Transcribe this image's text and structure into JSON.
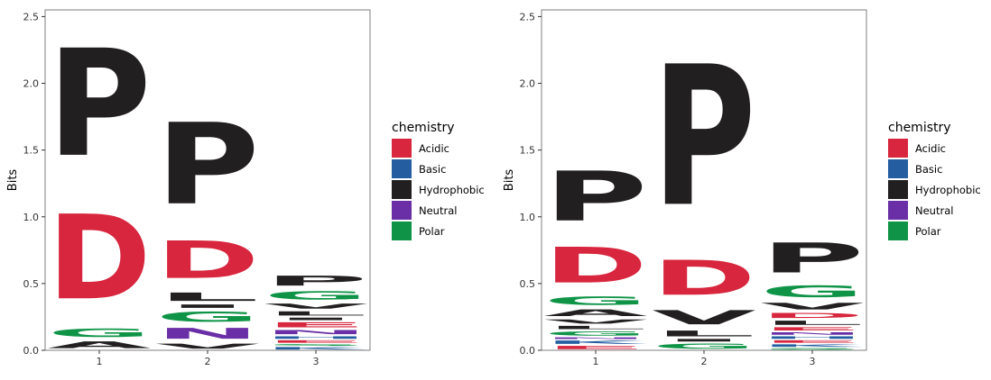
{
  "chart_data": [
    {
      "type": "sequence-logo",
      "ylabel": "Bits",
      "ylim": [
        0,
        2.55
      ],
      "y_ticks": [
        "0.0",
        "0.5",
        "1.0",
        "1.5",
        "2.0",
        "2.5"
      ],
      "x_ticks": [
        "1",
        "2",
        "3"
      ],
      "legend": {
        "title": "chemistry",
        "entries": [
          {
            "label": "Acidic",
            "color": "#d7263d"
          },
          {
            "label": "Basic",
            "color": "#245ea1"
          },
          {
            "label": "Hydrophobic",
            "color": "#221f20"
          },
          {
            "label": "Neutral",
            "color": "#6a2fa6"
          },
          {
            "label": "Polar",
            "color": "#0f9447"
          }
        ]
      },
      "positions": [
        {
          "x": "1",
          "stack": [
            {
              "letter": "A",
              "group": "Hydrophobic",
              "height": 0.08
            },
            {
              "letter": "G",
              "group": "Polar",
              "height": 0.1
            },
            {
              "letter": "D",
              "group": "Acidic",
              "height": 1.02
            },
            {
              "letter": "P",
              "group": "Hydrophobic",
              "height": 1.29
            }
          ]
        },
        {
          "x": "2",
          "stack": [
            {
              "letter": "V",
              "group": "Hydrophobic",
              "height": 0.06
            },
            {
              "letter": "N",
              "group": "Neutral",
              "height": 0.13
            },
            {
              "letter": "G",
              "group": "Polar",
              "height": 0.12
            },
            {
              "letter": "I",
              "group": "Hydrophobic",
              "height": 0.04
            },
            {
              "letter": "L",
              "group": "Hydrophobic",
              "height": 0.1
            },
            {
              "letter": "D",
              "group": "Acidic",
              "height": 0.45
            },
            {
              "letter": "P",
              "group": "Hydrophobic",
              "height": 0.98
            }
          ]
        },
        {
          "x": "3",
          "stack": [
            {
              "letter": "K",
              "group": "Basic",
              "height": 0.03
            },
            {
              "letter": "S",
              "group": "Polar",
              "height": 0.02
            },
            {
              "letter": "E",
              "group": "Acidic",
              "height": 0.03
            },
            {
              "letter": "H",
              "group": "Basic",
              "height": 0.03
            },
            {
              "letter": "N",
              "group": "Neutral",
              "height": 0.05
            },
            {
              "letter": "E",
              "group": "Acidic",
              "height": 0.06
            },
            {
              "letter": "I",
              "group": "Hydrophobic",
              "height": 0.03
            },
            {
              "letter": "L",
              "group": "Hydrophobic",
              "height": 0.05
            },
            {
              "letter": "V",
              "group": "Hydrophobic",
              "height": 0.06
            },
            {
              "letter": "G",
              "group": "Polar",
              "height": 0.1
            },
            {
              "letter": "P",
              "group": "Hydrophobic",
              "height": 0.12
            }
          ]
        }
      ]
    },
    {
      "type": "sequence-logo",
      "ylabel": "Bits",
      "ylim": [
        0,
        2.55
      ],
      "y_ticks": [
        "0.0",
        "0.5",
        "1.0",
        "1.5",
        "2.0",
        "2.5"
      ],
      "x_ticks": [
        "1",
        "2",
        "3"
      ],
      "legend": {
        "title": "chemistry",
        "entries": [
          {
            "label": "Acidic",
            "color": "#d7263d"
          },
          {
            "label": "Basic",
            "color": "#245ea1"
          },
          {
            "label": "Hydrophobic",
            "color": "#221f20"
          },
          {
            "label": "Neutral",
            "color": "#6a2fa6"
          },
          {
            "label": "Polar",
            "color": "#0f9447"
          }
        ]
      },
      "positions": [
        {
          "x": "1",
          "stack": [
            {
              "letter": "E",
              "group": "Acidic",
              "height": 0.04
            },
            {
              "letter": "K",
              "group": "Basic",
              "height": 0.04
            },
            {
              "letter": "N",
              "group": "Neutral",
              "height": 0.02
            },
            {
              "letter": "G",
              "group": "Polar",
              "height": 0.05
            },
            {
              "letter": "L",
              "group": "Hydrophobic",
              "height": 0.04
            },
            {
              "letter": "V",
              "group": "Hydrophobic",
              "height": 0.05
            },
            {
              "letter": "A",
              "group": "Hydrophobic",
              "height": 0.08
            },
            {
              "letter": "G",
              "group": "Polar",
              "height": 0.1
            },
            {
              "letter": "D",
              "group": "Acidic",
              "height": 0.43
            },
            {
              "letter": "P",
              "group": "Hydrophobic",
              "height": 0.6
            }
          ]
        },
        {
          "x": "2",
          "stack": [
            {
              "letter": "G",
              "group": "Polar",
              "height": 0.06
            },
            {
              "letter": "I",
              "group": "Hydrophobic",
              "height": 0.03
            },
            {
              "letter": "L",
              "group": "Hydrophobic",
              "height": 0.07
            },
            {
              "letter": "V",
              "group": "Hydrophobic",
              "height": 0.17
            },
            {
              "letter": "D",
              "group": "Acidic",
              "height": 0.42
            },
            {
              "letter": "P",
              "group": "Hydrophobic",
              "height": 1.69
            }
          ]
        },
        {
          "x": "3",
          "stack": [
            {
              "letter": "S",
              "group": "Polar",
              "height": 0.02
            },
            {
              "letter": "K",
              "group": "Basic",
              "height": 0.03
            },
            {
              "letter": "E",
              "group": "Acidic",
              "height": 0.03
            },
            {
              "letter": "H",
              "group": "Basic",
              "height": 0.03
            },
            {
              "letter": "N",
              "group": "Neutral",
              "height": 0.03
            },
            {
              "letter": "E",
              "group": "Acidic",
              "height": 0.04
            },
            {
              "letter": "L",
              "group": "Hydrophobic",
              "height": 0.05
            },
            {
              "letter": "D",
              "group": "Acidic",
              "height": 0.06
            },
            {
              "letter": "V",
              "group": "Hydrophobic",
              "height": 0.08
            },
            {
              "letter": "G",
              "group": "Polar",
              "height": 0.14
            },
            {
              "letter": "P",
              "group": "Hydrophobic",
              "height": 0.36
            }
          ]
        }
      ]
    }
  ]
}
